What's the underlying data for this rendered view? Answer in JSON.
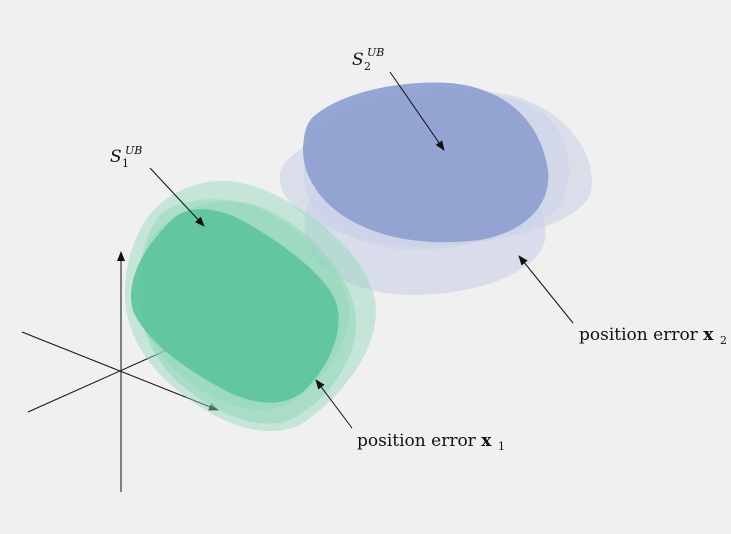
{
  "labels": {
    "s1": {
      "base": "S",
      "sub": "1",
      "sup": "UB"
    },
    "s2": {
      "base": "S",
      "sub": "2",
      "sup": "UB"
    },
    "pos1": {
      "text": "position error ",
      "var": "x",
      "sub": "1"
    },
    "pos2": {
      "text": "position error ",
      "var": "x",
      "sub": "2"
    }
  },
  "colors": {
    "set1": "#5cc49a",
    "set1_error": "#8fd6b8",
    "set2": "#8fa1d2",
    "set2_error": "#c9d0e8",
    "axes": "#111111",
    "background": "#f0f0f0"
  }
}
